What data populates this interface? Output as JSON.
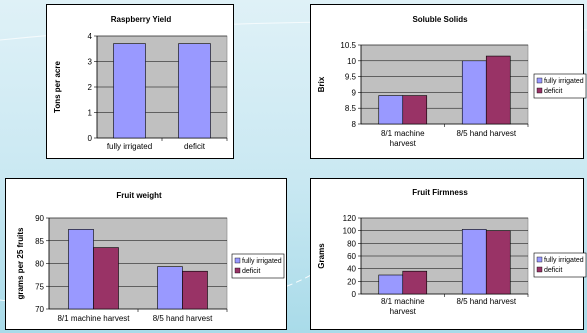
{
  "colors": {
    "series1": "#9999ff",
    "series2": "#993366",
    "plot_bg": "#c0c0c0",
    "border": "#000000"
  },
  "chart_data": [
    {
      "type": "bar",
      "title": "Raspberry Yield",
      "ylabel": "Tons per acre",
      "xlabel": "",
      "ylim": [
        0,
        4
      ],
      "yticks": [
        0,
        1,
        2,
        3,
        4
      ],
      "categories": [
        "fully irrigated",
        "deficit"
      ],
      "series": [
        {
          "values": [
            3.7,
            3.7
          ]
        }
      ],
      "legend": null,
      "grid": true
    },
    {
      "type": "bar",
      "title": "Soluble Solids",
      "ylabel": "Brix",
      "xlabel": "",
      "ylim": [
        8,
        10.5
      ],
      "yticks": [
        8,
        8.5,
        9,
        9.5,
        10,
        10.5
      ],
      "categories": [
        [
          "8/1 machine",
          "harvest"
        ],
        [
          "8/5 hand harvest"
        ]
      ],
      "series": [
        {
          "name": "fully irrigated",
          "values": [
            8.9,
            10.0
          ]
        },
        {
          "name": "deficit",
          "values": [
            8.9,
            10.15
          ]
        }
      ],
      "legend": "right",
      "grid": true
    },
    {
      "type": "bar",
      "title": "Fruit weight",
      "ylabel": "grams per 25 fruits",
      "xlabel": "",
      "ylim": [
        70,
        90
      ],
      "yticks": [
        70,
        75,
        80,
        85,
        90
      ],
      "categories": [
        [
          "8/1 machine harvest"
        ],
        [
          "8/5 hand harvest"
        ]
      ],
      "series": [
        {
          "name": "fully irrigated",
          "values": [
            87.5,
            79.3
          ]
        },
        {
          "name": "deficit",
          "values": [
            83.5,
            78.3
          ]
        }
      ],
      "legend": "right",
      "grid": true
    },
    {
      "type": "bar",
      "title": "Fruit Firmness",
      "ylabel": "Grams",
      "xlabel": "",
      "ylim": [
        0,
        120
      ],
      "yticks": [
        0,
        20,
        40,
        60,
        80,
        100,
        120
      ],
      "categories": [
        [
          "8/1 machine",
          "harvest"
        ],
        [
          "8/5 hand harvest"
        ]
      ],
      "series": [
        {
          "name": "fully irrigated",
          "values": [
            30,
            102
          ]
        },
        {
          "name": "deficit",
          "values": [
            36,
            100
          ]
        }
      ],
      "legend": "right",
      "grid": true
    }
  ]
}
